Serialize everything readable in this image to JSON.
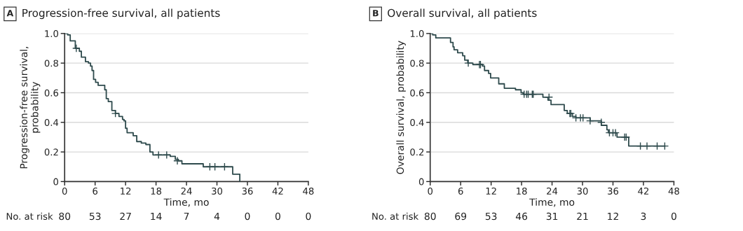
{
  "chart_data": [
    {
      "type": "step",
      "title": "Progression-free survival, all patients",
      "xlabel": "Time, mo",
      "ylabel": "Progression-free survival,\nprobability",
      "annotations": [
        "A",
        "No. at risk",
        "80",
        "53",
        "27",
        "14",
        "7",
        "4",
        "0",
        "0",
        "0"
      ],
      "series": [
        {
          "color": "#2e4a4c",
          "x": [
            0,
            0.6,
            1.1,
            2.1,
            2.9,
            3.3,
            4.1,
            4.7,
            5.1,
            5.4,
            5.7,
            6.1,
            6.6,
            7.9,
            8.2,
            8.6,
            9.3,
            10.0,
            10.7,
            11.4,
            11.7,
            12.0,
            12.3,
            13.5,
            14.2,
            15.1,
            16.0,
            16.8,
            17.4,
            20.8,
            21.8,
            22.4,
            23.1,
            27.3,
            33.1,
            34.5
          ],
          "values": [
            1.0,
            0.99,
            0.95,
            0.9,
            0.88,
            0.84,
            0.81,
            0.8,
            0.78,
            0.75,
            0.69,
            0.67,
            0.65,
            0.62,
            0.56,
            0.54,
            0.48,
            0.46,
            0.44,
            0.42,
            0.41,
            0.36,
            0.33,
            0.31,
            0.27,
            0.26,
            0.25,
            0.2,
            0.18,
            0.17,
            0.15,
            0.14,
            0.12,
            0.1,
            0.05,
            0
          ]
        },
        {
          "type": "scatter",
          "marker": "cross",
          "color": "#2e4a4c",
          "x": [
            2.3,
            10.0,
            18.5,
            20.1,
            22.2,
            28.6,
            29.6,
            31.5
          ],
          "values": [
            0.9,
            0.46,
            0.18,
            0.18,
            0.14,
            0.1,
            0.1,
            0.1
          ]
        }
      ],
      "xlim": [
        0,
        48
      ],
      "xticks": [
        0,
        6,
        12,
        18,
        24,
        30,
        36,
        42,
        48
      ],
      "ylim": [
        0,
        1
      ],
      "yticks": [
        0,
        {
          "value": 0.2,
          "label": "0.2"
        },
        {
          "value": 0.4,
          "label": "0.4"
        },
        {
          "value": 0.6,
          "label": "0.6"
        },
        {
          "value": 0.8,
          "label": "0.8"
        },
        {
          "value": 1.0,
          "label": "1.0"
        }
      ],
      "grid": "y"
    },
    {
      "type": "step",
      "title": "Overall survival, all patients",
      "xlabel": "Time, mo",
      "ylabel": "Overall survival, probability",
      "annotations": [
        "B",
        "No. at risk",
        "80",
        "69",
        "53",
        "46",
        "31",
        "21",
        "12",
        "3",
        "0"
      ],
      "series": [
        {
          "color": "#2e4a4c",
          "x": [
            0,
            0.5,
            1.1,
            4.0,
            4.5,
            4.7,
            5.4,
            6.4,
            6.8,
            7.4,
            8.4,
            10.3,
            10.7,
            11.5,
            11.9,
            13.5,
            14.6,
            16.8,
            17.9,
            18.3,
            22.2,
            23.2,
            23.8,
            26.4,
            27.0,
            28.0,
            28.7,
            31.5,
            33.7,
            34.8,
            35.1,
            36.8,
            39.1,
            46.2
          ],
          "values": [
            1.0,
            0.99,
            0.97,
            0.94,
            0.91,
            0.89,
            0.87,
            0.85,
            0.82,
            0.8,
            0.79,
            0.78,
            0.75,
            0.73,
            0.7,
            0.66,
            0.63,
            0.62,
            0.6,
            0.59,
            0.57,
            0.55,
            0.52,
            0.48,
            0.46,
            0.44,
            0.43,
            0.41,
            0.38,
            0.35,
            0.33,
            0.3,
            0.24,
            0.24
          ]
        },
        {
          "type": "scatter",
          "marker": "cross",
          "color": "#2e4a4c",
          "x": [
            7.5,
            9.7,
            9.9,
            18.5,
            19.0,
            19.3,
            20.1,
            20.3,
            23.4,
            27.5,
            27.7,
            28.7,
            29.6,
            30.1,
            31.5,
            33.7,
            35.3,
            36.0,
            36.5,
            38.3,
            38.6,
            41.4,
            42.7,
            44.7,
            46.2
          ],
          "values": [
            0.8,
            0.79,
            0.79,
            0.59,
            0.59,
            0.59,
            0.59,
            0.59,
            0.57,
            0.46,
            0.46,
            0.43,
            0.43,
            0.43,
            0.41,
            0.4,
            0.33,
            0.33,
            0.33,
            0.3,
            0.3,
            0.24,
            0.24,
            0.24,
            0.24
          ]
        }
      ],
      "xlim": [
        0,
        48
      ],
      "xticks": [
        0,
        6,
        12,
        18,
        24,
        30,
        36,
        42,
        48
      ],
      "ylim": [
        0,
        1
      ],
      "yticks": [
        0,
        {
          "value": 0.2,
          "label": "0.2"
        },
        {
          "value": 0.4,
          "label": "0.4"
        },
        {
          "value": 0.6,
          "label": "0.6"
        },
        {
          "value": 0.8,
          "label": "0.8"
        },
        {
          "value": 1.0,
          "label": "1.0"
        }
      ],
      "grid": "y"
    }
  ]
}
